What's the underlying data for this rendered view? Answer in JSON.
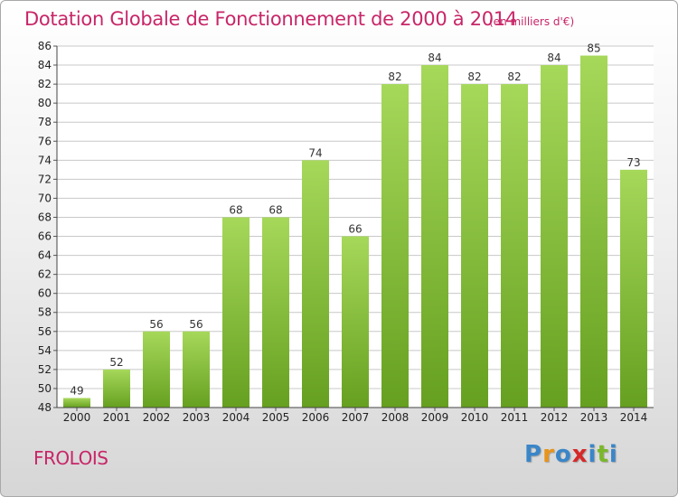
{
  "header": {
    "title": "Dotation Globale de Fonctionnement de 2000 à 2014",
    "unit_note": "(en milliers d'€)"
  },
  "footer": {
    "town": "FROLOIS",
    "logo_letters": [
      "P",
      "r",
      "o",
      "x",
      "i",
      "t",
      "i"
    ]
  },
  "colors": {
    "title": "#c82668",
    "bar_light": "#a6d85a",
    "bar_dark": "#66a020",
    "grid": "#c8c8c8",
    "logo": [
      "#3a86c8",
      "#e8941a",
      "#3a86c8",
      "#d62828",
      "#3a86c8",
      "#7ab82a",
      "#3a86c8"
    ]
  },
  "chart_data": {
    "type": "bar",
    "title": "Dotation Globale de Fonctionnement de 2000 à 2014",
    "subtitle": "(en milliers d'€)",
    "xlabel": "",
    "ylabel": "",
    "categories": [
      "2000",
      "2001",
      "2002",
      "2003",
      "2004",
      "2005",
      "2006",
      "2007",
      "2008",
      "2009",
      "2010",
      "2011",
      "2012",
      "2013",
      "2014"
    ],
    "values": [
      49,
      52,
      56,
      56,
      68,
      68,
      74,
      66,
      82,
      84,
      82,
      82,
      84,
      85,
      73
    ],
    "ylim": [
      48,
      86
    ],
    "yticks": [
      48,
      50,
      52,
      54,
      56,
      58,
      60,
      62,
      64,
      66,
      68,
      70,
      72,
      74,
      76,
      78,
      80,
      82,
      84,
      86
    ],
    "grid": true,
    "legend": "none"
  }
}
